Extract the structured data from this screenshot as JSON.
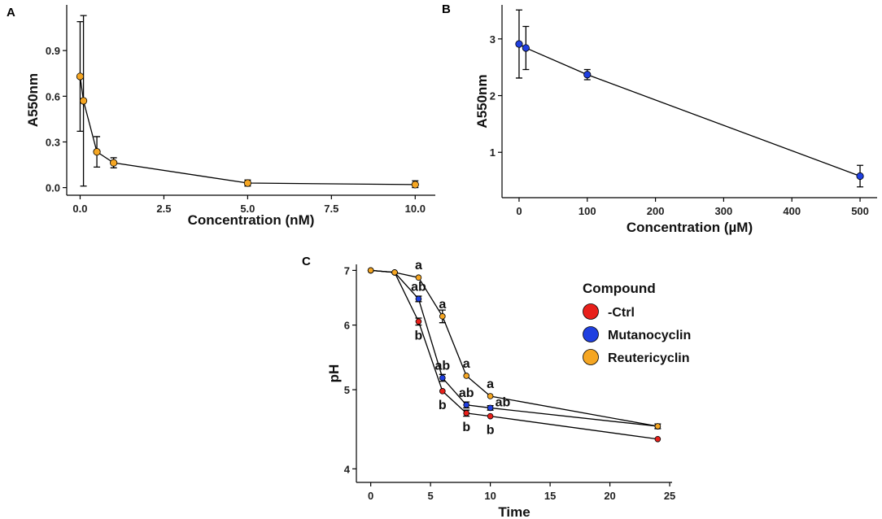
{
  "chart_data": [
    {
      "panel": "A",
      "type": "line",
      "xlabel": "Concentration (nM)",
      "ylabel": "A550nm",
      "xlim": [
        -0.4,
        10.6
      ],
      "ylim": [
        -0.05,
        1.2
      ],
      "xticks": [
        0.0,
        2.5,
        5.0,
        7.5,
        10.0
      ],
      "xtick_labels": [
        "0.0",
        "2.5",
        "5.0",
        "7.5",
        "10.0"
      ],
      "yticks": [
        0.0,
        0.3,
        0.6,
        0.9
      ],
      "ytick_labels": [
        "0.0",
        "0.3",
        "0.6",
        "0.9"
      ],
      "series": [
        {
          "name": "Reutericyclin",
          "color": "#F5A623",
          "points": [
            {
              "x": 0.0,
              "y": 0.73,
              "lo": 0.37,
              "hi": 1.09
            },
            {
              "x": 0.1,
              "y": 0.57,
              "lo": 0.01,
              "hi": 1.13
            },
            {
              "x": 0.5,
              "y": 0.235,
              "lo": 0.135,
              "hi": 0.335
            },
            {
              "x": 1.0,
              "y": 0.163,
              "lo": 0.13,
              "hi": 0.196
            },
            {
              "x": 5.0,
              "y": 0.03,
              "lo": 0.01,
              "hi": 0.05
            },
            {
              "x": 10.0,
              "y": 0.02,
              "lo": 0.0,
              "hi": 0.045
            }
          ]
        }
      ]
    },
    {
      "panel": "B",
      "type": "line",
      "xlabel": "Concentration (µM)",
      "ylabel": "A550nm",
      "xlim": [
        -25,
        525
      ],
      "ylim": [
        0.2,
        3.6
      ],
      "xticks": [
        0,
        100,
        200,
        300,
        400,
        500
      ],
      "xtick_labels": [
        "0",
        "100",
        "200",
        "300",
        "400",
        "500"
      ],
      "yticks": [
        1,
        2,
        3
      ],
      "ytick_labels": [
        "1",
        "2",
        "3"
      ],
      "series": [
        {
          "name": "Mutanocyclin",
          "color": "#1F3FE0",
          "points": [
            {
              "x": 0,
              "y": 2.91,
              "lo": 2.31,
              "hi": 3.51
            },
            {
              "x": 10,
              "y": 2.84,
              "lo": 2.46,
              "hi": 3.22
            },
            {
              "x": 100,
              "y": 2.37,
              "lo": 2.28,
              "hi": 2.46
            },
            {
              "x": 500,
              "y": 0.58,
              "lo": 0.39,
              "hi": 0.77
            }
          ]
        }
      ]
    },
    {
      "panel": "C",
      "type": "line",
      "xlabel": "Time",
      "ylabel": "pH",
      "xlim": [
        -1.2,
        25.2
      ],
      "ylim": [
        3.85,
        7.12
      ],
      "xticks": [
        0,
        5,
        10,
        15,
        20,
        25
      ],
      "xtick_labels": [
        "0",
        "5",
        "10",
        "15",
        "20",
        "25"
      ],
      "yticks": [
        4,
        5,
        6,
        7
      ],
      "ytick_labels": [
        "4",
        "5",
        "6",
        "7"
      ],
      "legend_title": "Compound",
      "legend_position": "right",
      "series": [
        {
          "name": "-Ctrl",
          "color": "#E8201B",
          "points": [
            {
              "x": 0,
              "y": 7.0
            },
            {
              "x": 2,
              "y": 6.96
            },
            {
              "x": 4,
              "y": 6.06,
              "lo": 6.0,
              "hi": 6.12
            },
            {
              "x": 6,
              "y": 4.98
            },
            {
              "x": 8,
              "y": 4.68,
              "lo": 4.64,
              "hi": 4.72
            },
            {
              "x": 10,
              "y": 4.64
            },
            {
              "x": 24,
              "y": 4.35
            }
          ]
        },
        {
          "name": "Mutanocyclin",
          "color": "#1F3FE0",
          "points": [
            {
              "x": 0,
              "y": 7.0
            },
            {
              "x": 2,
              "y": 6.96
            },
            {
              "x": 4,
              "y": 6.46,
              "lo": 6.41,
              "hi": 6.51
            },
            {
              "x": 6,
              "y": 5.17,
              "lo": 5.12,
              "hi": 5.22
            },
            {
              "x": 8,
              "y": 4.79,
              "lo": 4.75,
              "hi": 4.83
            },
            {
              "x": 10,
              "y": 4.75,
              "lo": 4.72,
              "hi": 4.78
            },
            {
              "x": 24,
              "y": 4.51,
              "lo": 4.48,
              "hi": 4.54
            }
          ]
        },
        {
          "name": "Reutericyclin",
          "color": "#F5A623",
          "points": [
            {
              "x": 0,
              "y": 7.0
            },
            {
              "x": 2,
              "y": 6.96
            },
            {
              "x": 4,
              "y": 6.86
            },
            {
              "x": 6,
              "y": 6.15,
              "lo": 6.04,
              "hi": 6.26
            },
            {
              "x": 8,
              "y": 5.2
            },
            {
              "x": 10,
              "y": 4.91
            },
            {
              "x": 24,
              "y": 4.51
            }
          ]
        }
      ],
      "annotations": [
        {
          "text": "a",
          "x": 4,
          "y": 6.86,
          "pos": "above"
        },
        {
          "text": "ab",
          "x": 4,
          "y": 6.46,
          "pos": "above"
        },
        {
          "text": "b",
          "x": 4,
          "y": 6.06,
          "pos": "below"
        },
        {
          "text": "a",
          "x": 6,
          "y": 6.15,
          "pos": "above"
        },
        {
          "text": "ab",
          "x": 6,
          "y": 5.17,
          "pos": "above"
        },
        {
          "text": "b",
          "x": 6,
          "y": 4.98,
          "pos": "below"
        },
        {
          "text": "a",
          "x": 8,
          "y": 5.2,
          "pos": "above"
        },
        {
          "text": "ab",
          "x": 8,
          "y": 4.79,
          "pos": "above"
        },
        {
          "text": "b",
          "x": 8,
          "y": 4.68,
          "pos": "below"
        },
        {
          "text": "a",
          "x": 10,
          "y": 4.91,
          "pos": "above"
        },
        {
          "text": "ab",
          "x": 10,
          "y": 4.75,
          "pos": "right"
        },
        {
          "text": "b",
          "x": 10,
          "y": 4.64,
          "pos": "below"
        }
      ]
    }
  ]
}
